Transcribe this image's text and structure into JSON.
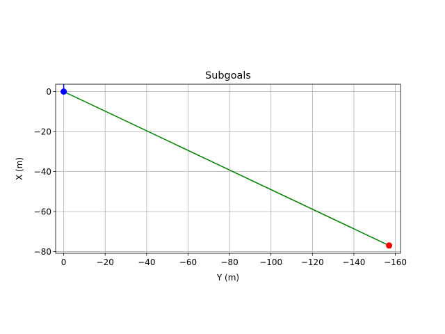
{
  "chart_data": {
    "type": "line",
    "title": "Subgoals",
    "xlabel": "Y (m)",
    "ylabel": "X (m)",
    "xlim": [
      3.9,
      -162.5
    ],
    "ylim": [
      -80.9,
      3.7
    ],
    "x_axis_inverted": true,
    "xticks": [
      0,
      -20,
      -40,
      -60,
      -80,
      -100,
      -120,
      -140,
      -160
    ],
    "xtick_labels": [
      "0",
      "−20",
      "−40",
      "−60",
      "−80",
      "−100",
      "−120",
      "−140",
      "−160"
    ],
    "yticks": [
      0,
      -20,
      -40,
      -60,
      -80
    ],
    "ytick_labels": [
      "0",
      "−20",
      "−40",
      "−60",
      "−80"
    ],
    "grid": true,
    "series": [
      {
        "color": "#008000",
        "kind": "line",
        "points": [
          [
            0,
            0
          ],
          [
            -157,
            -77
          ]
        ]
      },
      {
        "color": "#0000ff",
        "kind": "line",
        "points": [
          [
            0,
            0
          ],
          [
            0,
            3.7
          ]
        ]
      },
      {
        "color": "#0000ff",
        "kind": "marker",
        "points": [
          [
            0,
            0
          ]
        ]
      },
      {
        "color": "#ff0000",
        "kind": "marker",
        "points": [
          [
            -157,
            -77
          ]
        ]
      }
    ]
  }
}
